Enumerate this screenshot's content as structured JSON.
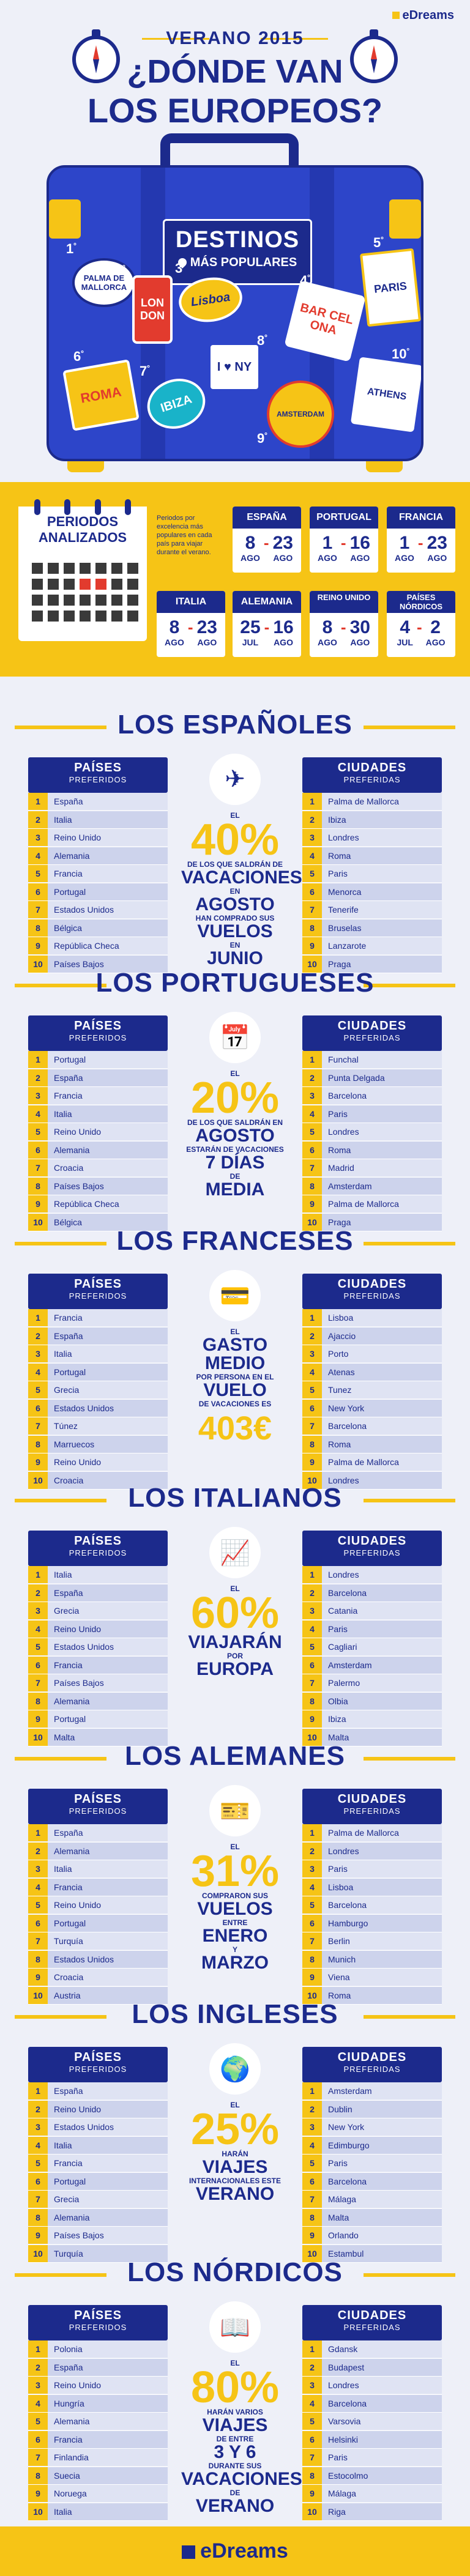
{
  "brand": "eDreams",
  "header": {
    "year": "VERANO 2015",
    "question_line1": "¿DÓNDE VAN",
    "question_line2": "LOS EUROPEOS?"
  },
  "suitcase": {
    "title": "DESTINOS",
    "subtitle": "MÁS POPULARES",
    "stickers": [
      {
        "rank": "1",
        "suffix": "º",
        "label": "PALMA DE MALLORCA",
        "icon": "palma-sticker"
      },
      {
        "rank": "2",
        "suffix": "º",
        "label": "LON DON",
        "icon": "london-bus-sticker"
      },
      {
        "rank": "3",
        "suffix": "º",
        "label": "Lisboa",
        "icon": "lisboa-sticker"
      },
      {
        "rank": "4",
        "suffix": "º",
        "label": "BAR CEL ONA",
        "icon": "barcelona-sticker"
      },
      {
        "rank": "5",
        "suffix": "º",
        "label": "PARIS",
        "icon": "paris-sticker"
      },
      {
        "rank": "6",
        "suffix": "º",
        "label": "ROMA",
        "icon": "roma-sticker"
      },
      {
        "rank": "7",
        "suffix": "º",
        "label": "IBIZA",
        "icon": "ibiza-sticker"
      },
      {
        "rank": "8",
        "suffix": "º",
        "label": "I ♥ NY",
        "icon": "ny-sticker"
      },
      {
        "rank": "9",
        "suffix": "º",
        "label": "AMSTERDAM",
        "icon": "amsterdam-sticker"
      },
      {
        "rank": "10",
        "suffix": "º",
        "label": "ATHENS",
        "icon": "athens-sticker"
      }
    ]
  },
  "periodos": {
    "title": "PERIODOS ANALIZADOS",
    "note": "Periodos por excelencia más populares en cada país para viajar durante el verano.",
    "cards": [
      {
        "country": "ESPAÑA",
        "from_day": "8",
        "from_month": "AGO",
        "to_day": "23",
        "to_month": "AGO"
      },
      {
        "country": "PORTUGAL",
        "from_day": "1",
        "from_month": "AGO",
        "to_day": "16",
        "to_month": "AGO"
      },
      {
        "country": "FRANCIA",
        "from_day": "1",
        "from_month": "AGO",
        "to_day": "23",
        "to_month": "AGO"
      },
      {
        "country": "ITALIA",
        "from_day": "8",
        "from_month": "AGO",
        "to_day": "23",
        "to_month": "AGO"
      },
      {
        "country": "ALEMANIA",
        "from_day": "25",
        "from_month": "JUL",
        "to_day": "16",
        "to_month": "AGO"
      },
      {
        "country": "REINO UNIDO",
        "from_day": "8",
        "from_month": "AGO",
        "to_day": "30",
        "to_month": "AGO"
      },
      {
        "country": "PAÍSES NÓRDICOS",
        "from_day": "4",
        "from_month": "JUL",
        "to_day": "2",
        "to_month": "AGO"
      }
    ]
  },
  "labels": {
    "paises": "PAÍSES",
    "ciudades": "CIUDADES",
    "preferidos": "PREFERIDOS",
    "preferidas": "PREFERIDAS"
  },
  "sections": [
    {
      "title": "LOS ESPAÑOLES",
      "countries": [
        "España",
        "Italia",
        "Reino Unido",
        "Alemania",
        "Francia",
        "Portugal",
        "Estados Unidos",
        "Bélgica",
        "República Checa",
        "Países Bajos"
      ],
      "cities": [
        "Palma de Mallorca",
        "Ibiza",
        "Londres",
        "Roma",
        "Paris",
        "Menorca",
        "Tenerife",
        "Bruselas",
        "Lanzarote",
        "Praga"
      ],
      "icon": "airplane-icon",
      "stat": {
        "pre": "EL",
        "big": "40%",
        "l1": "DE LOS QUE SALDRÁN DE",
        "mid1": "VACACIONES",
        "l2": "EN",
        "mid2": "AGOSTO",
        "l3": "HAN COMPRADO SUS",
        "mid3": "VUELOS",
        "l4": "EN",
        "mid4": "JUNIO"
      }
    },
    {
      "title": "LOS PORTUGUESES",
      "countries": [
        "Portugal",
        "España",
        "Francia",
        "Italia",
        "Reino Unido",
        "Alemania",
        "Croacia",
        "Países Bajos",
        "República Checa",
        "Bélgica"
      ],
      "cities": [
        "Funchal",
        "Punta Delgada",
        "Barcelona",
        "Paris",
        "Londres",
        "Roma",
        "Madrid",
        "Amsterdam",
        "Palma de Mallorca",
        "Praga"
      ],
      "icon": "calendar-icon",
      "stat": {
        "pre": "EL",
        "big": "20%",
        "l1": "DE LOS QUE SALDRÁN EN",
        "mid1": "AGOSTO",
        "l2": "ESTARÁN DE VACACIONES",
        "mid2": "7 DÍAS",
        "l3": "DE",
        "mid3": "MEDIA",
        "l4": "",
        "mid4": ""
      }
    },
    {
      "title": "LOS FRANCESES",
      "countries": [
        "Francia",
        "España",
        "Italia",
        "Portugal",
        "Grecia",
        "Estados Unidos",
        "Túnez",
        "Marruecos",
        "Reino Unido",
        "Croacia"
      ],
      "cities": [
        "Lisboa",
        "Ajaccio",
        "Porto",
        "Atenas",
        "Tunez",
        "New York",
        "Barcelona",
        "Roma",
        "Palma de Mallorca",
        "Londres"
      ],
      "icon": "wallet-icon",
      "stat": {
        "pre": "EL",
        "big": "403€",
        "l1": "",
        "mid1": "GASTO MEDIO",
        "l2": "POR PERSONA EN EL",
        "mid2": "VUELO",
        "l3": "DE VACACIONES ES",
        "mid3": "",
        "l4": "",
        "mid4": ""
      }
    },
    {
      "title": "LOS ITALIANOS",
      "countries": [
        "Italia",
        "España",
        "Grecia",
        "Reino Unido",
        "Estados Unidos",
        "Francia",
        "Países Bajos",
        "Alemania",
        "Portugal",
        "Malta"
      ],
      "cities": [
        "Londres",
        "Barcelona",
        "Catania",
        "Paris",
        "Cagliari",
        "Amsterdam",
        "Palermo",
        "Olbia",
        "Ibiza",
        "Malta"
      ],
      "icon": "chart-icon",
      "stat": {
        "pre": "EL",
        "big": "60%",
        "l1": "",
        "mid1": "VIAJARÁN",
        "l2": "POR",
        "mid2": "EUROPA",
        "l3": "",
        "mid3": "",
        "l4": "",
        "mid4": ""
      }
    },
    {
      "title": "LOS ALEMANES",
      "countries": [
        "España",
        "Alemania",
        "Italia",
        "Francia",
        "Reino Unido",
        "Portugal",
        "Turquía",
        "Estados Unidos",
        "Croacia",
        "Austria"
      ],
      "cities": [
        "Palma de Mallorca",
        "Londres",
        "Paris",
        "Lisboa",
        "Barcelona",
        "Hamburgo",
        "Berlin",
        "Munich",
        "Viena",
        "Roma"
      ],
      "icon": "ticket-icon",
      "stat": {
        "pre": "EL",
        "big": "31%",
        "l1": "COMPRARON SUS",
        "mid1": "VUELOS",
        "l2": "ENTRE",
        "mid2": "ENERO",
        "l3": "Y",
        "mid3": "MARZO",
        "l4": "",
        "mid4": ""
      }
    },
    {
      "title": "LOS INGLESES",
      "countries": [
        "España",
        "Reino Unido",
        "Estados Unidos",
        "Italia",
        "Francia",
        "Portugal",
        "Grecia",
        "Alemania",
        "Países Bajos",
        "Turquía"
      ],
      "cities": [
        "Amsterdam",
        "Dublin",
        "New York",
        "Edimburgo",
        "Paris",
        "Barcelona",
        "Málaga",
        "Malta",
        "Orlando",
        "Estambul"
      ],
      "icon": "globe-icon",
      "stat": {
        "pre": "EL",
        "big": "25%",
        "l1": "HARÁN",
        "mid1": "VIAJES",
        "l2": "INTERNACIONALES ESTE",
        "mid2": "VERANO",
        "l3": "",
        "mid3": "",
        "l4": "",
        "mid4": ""
      }
    },
    {
      "title": "LOS NÓRDICOS",
      "countries": [
        "Polonia",
        "España",
        "Reino Unido",
        "Hungría",
        "Alemania",
        "Francia",
        "Finlandia",
        "Suecia",
        "Noruega",
        "Italia"
      ],
      "cities": [
        "Gdansk",
        "Budapest",
        "Londres",
        "Barcelona",
        "Varsovia",
        "Helsinki",
        "Paris",
        "Estocolmo",
        "Málaga",
        "Riga"
      ],
      "icon": "book-icon",
      "stat": {
        "pre": "EL",
        "big": "80%",
        "l1": "HARÁN VARIOS",
        "mid1": "VIAJES",
        "l2": "DE ENTRE",
        "mid2": "3 Y 6",
        "l3": "DURANTE SUS",
        "mid3": "VACACIONES",
        "l4": "DE",
        "mid4": "VERANO"
      }
    }
  ],
  "colors": {
    "navy": "#1c2a8c",
    "yellow": "#f6c416",
    "blue": "#2d45c9",
    "red": "#e23b2e",
    "bg": "#eef0f8"
  }
}
